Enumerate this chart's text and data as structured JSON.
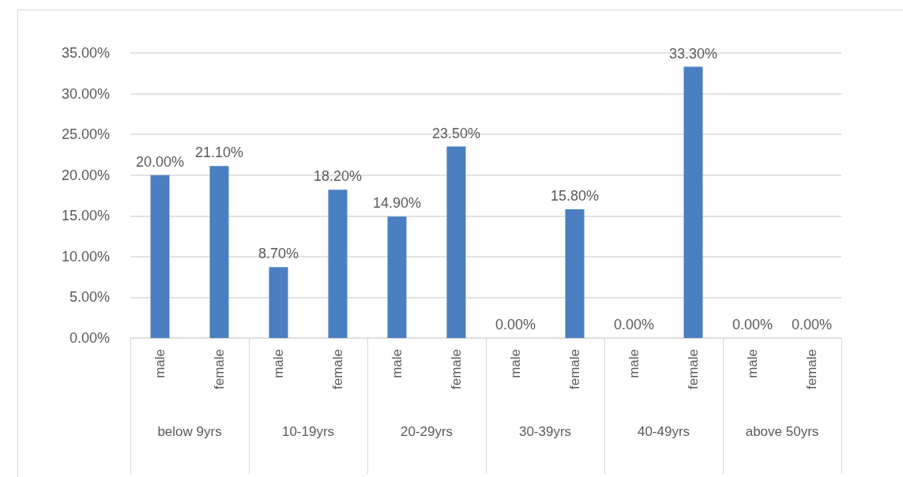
{
  "chart_data": {
    "type": "bar",
    "categories": [
      "male",
      "female",
      "male",
      "female",
      "male",
      "female",
      "male",
      "female",
      "male",
      "female",
      "male",
      "female"
    ],
    "annotations": [
      "below 9yrs",
      "10-19yrs",
      "20-29yrs",
      "30-39yrs",
      "40-49yrs",
      "above 50yrs"
    ],
    "values": [
      20.0,
      21.1,
      8.7,
      18.2,
      14.9,
      23.5,
      0,
      15.8,
      0,
      33.3,
      0,
      0
    ],
    "value_labels": [
      "20.00%",
      "21.10%",
      "8.70%",
      "18.20%",
      "14.90%",
      "23.50%",
      "0.00%",
      "15.80%",
      "0.00%",
      "33.30%",
      "0.00%",
      "0.00%"
    ],
    "color": "#4a7fc1",
    "ylim": [
      0,
      35
    ],
    "yticks": [
      {
        "value": 0,
        "label": "0.00%"
      },
      {
        "value": 5,
        "label": "5.00%"
      },
      {
        "value": 10,
        "label": "10.00%"
      },
      {
        "value": 15,
        "label": "15.00%"
      },
      {
        "value": 20,
        "label": "20.00%"
      },
      {
        "value": 25,
        "label": "25.00%"
      },
      {
        "value": 30,
        "label": "30.00%"
      },
      {
        "value": 35,
        "label": "35.00%"
      }
    ],
    "grid": "y"
  }
}
